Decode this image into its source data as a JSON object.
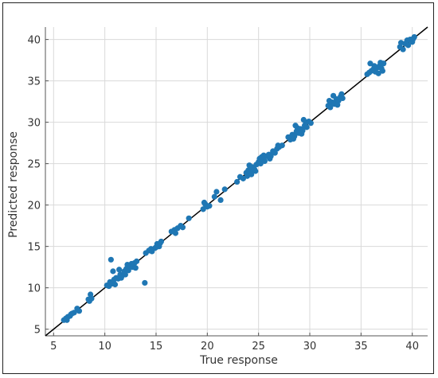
{
  "chart_data": {
    "type": "scatter",
    "title": "",
    "xlabel": "True response",
    "ylabel": "Predicted response",
    "xlim": [
      4.2,
      41.5
    ],
    "ylim": [
      4.2,
      41.5
    ],
    "xticks": [
      5,
      10,
      15,
      20,
      25,
      30,
      35,
      40
    ],
    "yticks": [
      5,
      10,
      15,
      20,
      25,
      30,
      35,
      40
    ],
    "grid": true,
    "legend": "none",
    "colors": {
      "points": "#1f77b4",
      "reference_line": "#000000"
    },
    "reference_line": {
      "from": [
        4.2,
        4.2
      ],
      "to": [
        41.5,
        41.5
      ]
    },
    "series": [
      {
        "points": [
          [
            6.0,
            6.1
          ],
          [
            6.2,
            6.3
          ],
          [
            6.4,
            6.5
          ],
          [
            6.6,
            6.6
          ],
          [
            6.8,
            6.9
          ],
          [
            7.0,
            7.0
          ],
          [
            6.3,
            6.1
          ],
          [
            6.7,
            6.8
          ],
          [
            7.3,
            7.5
          ],
          [
            7.5,
            7.2
          ],
          [
            8.4,
            8.6
          ],
          [
            8.6,
            9.2
          ],
          [
            8.7,
            8.7
          ],
          [
            8.5,
            8.4
          ],
          [
            10.2,
            10.3
          ],
          [
            10.4,
            10.2
          ],
          [
            10.5,
            10.7
          ],
          [
            10.7,
            10.5
          ],
          [
            10.9,
            11.0
          ],
          [
            11.1,
            11.2
          ],
          [
            11.3,
            11.1
          ],
          [
            11.5,
            11.6
          ],
          [
            11.7,
            11.5
          ],
          [
            11.9,
            12.0
          ],
          [
            12.1,
            12.3
          ],
          [
            12.3,
            12.1
          ],
          [
            12.5,
            12.6
          ],
          [
            12.7,
            12.5
          ],
          [
            12.9,
            13.0
          ],
          [
            13.1,
            13.2
          ],
          [
            10.8,
            12.0
          ],
          [
            11.4,
            12.2
          ],
          [
            12.0,
            11.6
          ],
          [
            12.6,
            12.9
          ],
          [
            10.6,
            13.4
          ],
          [
            13.9,
            10.6
          ],
          [
            11.0,
            10.4
          ],
          [
            11.6,
            11.2
          ],
          [
            12.2,
            12.8
          ],
          [
            13.0,
            12.4
          ],
          [
            14.0,
            14.2
          ],
          [
            14.3,
            14.5
          ],
          [
            14.6,
            14.4
          ],
          [
            14.9,
            14.8
          ],
          [
            15.1,
            15.3
          ],
          [
            15.3,
            15.0
          ],
          [
            15.5,
            15.6
          ],
          [
            14.5,
            14.7
          ],
          [
            15.0,
            14.9
          ],
          [
            15.4,
            15.4
          ],
          [
            16.5,
            16.8
          ],
          [
            16.8,
            17.0
          ],
          [
            17.1,
            17.2
          ],
          [
            17.4,
            17.5
          ],
          [
            17.6,
            17.3
          ],
          [
            16.9,
            16.6
          ],
          [
            18.2,
            18.4
          ],
          [
            19.6,
            19.5
          ],
          [
            19.8,
            20.1
          ],
          [
            20.0,
            19.8
          ],
          [
            19.7,
            20.3
          ],
          [
            20.2,
            19.9
          ],
          [
            20.7,
            21.0
          ],
          [
            20.9,
            21.6
          ],
          [
            21.3,
            20.6
          ],
          [
            21.7,
            21.9
          ],
          [
            22.9,
            22.8
          ],
          [
            23.2,
            23.4
          ],
          [
            23.5,
            23.2
          ],
          [
            23.8,
            23.9
          ],
          [
            24.0,
            24.2
          ],
          [
            24.2,
            24.0
          ],
          [
            24.4,
            24.6
          ],
          [
            24.6,
            24.3
          ],
          [
            24.8,
            24.9
          ],
          [
            25.0,
            25.2
          ],
          [
            25.2,
            25.0
          ],
          [
            25.4,
            25.5
          ],
          [
            25.6,
            25.3
          ],
          [
            25.8,
            25.9
          ],
          [
            26.0,
            26.1
          ],
          [
            26.2,
            25.9
          ],
          [
            26.4,
            26.5
          ],
          [
            26.6,
            26.3
          ],
          [
            26.8,
            26.8
          ],
          [
            27.0,
            27.0
          ],
          [
            23.9,
            23.5
          ],
          [
            24.3,
            23.7
          ],
          [
            24.7,
            24.1
          ],
          [
            25.1,
            25.6
          ],
          [
            25.5,
            26.0
          ],
          [
            26.1,
            25.6
          ],
          [
            26.9,
            27.2
          ],
          [
            27.3,
            27.2
          ],
          [
            24.1,
            24.8
          ],
          [
            25.3,
            25.8
          ],
          [
            27.9,
            28.2
          ],
          [
            28.1,
            27.9
          ],
          [
            28.3,
            28.5
          ],
          [
            28.5,
            28.3
          ],
          [
            28.7,
            28.9
          ],
          [
            28.9,
            28.7
          ],
          [
            29.1,
            29.2
          ],
          [
            29.3,
            29.0
          ],
          [
            29.5,
            29.6
          ],
          [
            29.7,
            29.4
          ],
          [
            29.9,
            30.1
          ],
          [
            30.1,
            29.9
          ],
          [
            28.4,
            28.0
          ],
          [
            28.8,
            29.3
          ],
          [
            29.2,
            28.6
          ],
          [
            29.6,
            30.0
          ],
          [
            29.4,
            30.3
          ],
          [
            28.6,
            29.6
          ],
          [
            31.8,
            32.0
          ],
          [
            32.0,
            31.8
          ],
          [
            32.2,
            32.4
          ],
          [
            32.4,
            32.2
          ],
          [
            32.6,
            32.8
          ],
          [
            32.8,
            32.6
          ],
          [
            33.0,
            33.1
          ],
          [
            33.2,
            32.9
          ],
          [
            32.3,
            33.2
          ],
          [
            32.7,
            32.1
          ],
          [
            33.1,
            33.4
          ],
          [
            31.9,
            32.6
          ],
          [
            35.6,
            35.8
          ],
          [
            35.8,
            36.0
          ],
          [
            36.0,
            36.2
          ],
          [
            36.2,
            36.4
          ],
          [
            36.4,
            36.1
          ],
          [
            36.6,
            36.6
          ],
          [
            36.8,
            36.8
          ],
          [
            37.0,
            36.5
          ],
          [
            37.2,
            37.1
          ],
          [
            35.9,
            37.1
          ],
          [
            36.3,
            36.8
          ],
          [
            36.7,
            35.9
          ],
          [
            36.9,
            37.2
          ],
          [
            37.1,
            36.2
          ],
          [
            38.8,
            39.1
          ],
          [
            39.1,
            38.8
          ],
          [
            39.3,
            39.5
          ],
          [
            39.6,
            39.3
          ],
          [
            39.8,
            40.0
          ],
          [
            40.0,
            39.7
          ],
          [
            40.2,
            40.3
          ],
          [
            39.5,
            39.9
          ],
          [
            38.9,
            39.6
          ],
          [
            40.1,
            40.1
          ]
        ]
      }
    ]
  }
}
